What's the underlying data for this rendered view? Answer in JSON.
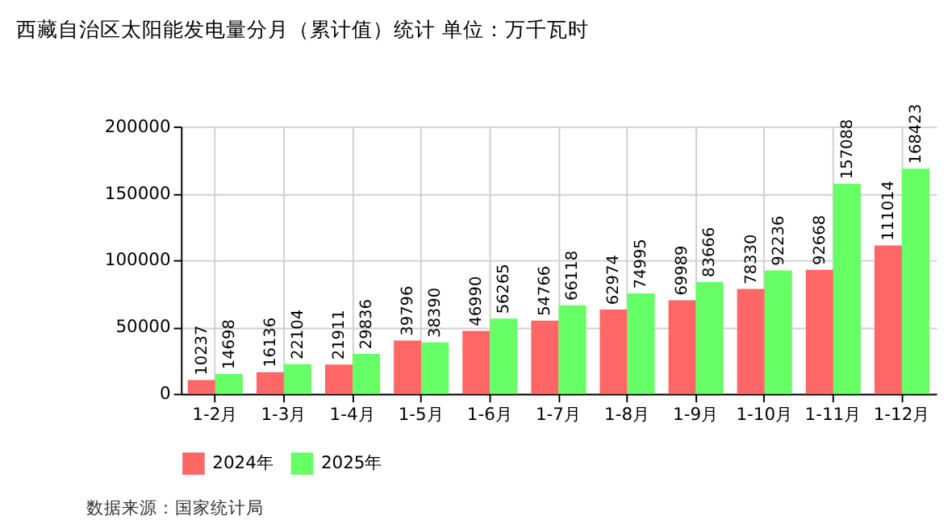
{
  "chart_data": {
    "type": "bar",
    "title": "西藏自治区太阳能发电量分月（累计值）统计 单位：万千瓦时",
    "categories": [
      "1-2月",
      "1-3月",
      "1-4月",
      "1-5月",
      "1-6月",
      "1-7月",
      "1-8月",
      "1-9月",
      "1-10月",
      "1-11月",
      "1-12月"
    ],
    "series": [
      {
        "name": "2024年",
        "color": "#ff6666",
        "values": [
          10237,
          16136,
          21911,
          39796,
          46990,
          54766,
          62974,
          69989,
          78330,
          92668,
          111014
        ]
      },
      {
        "name": "2025年",
        "color": "#66ff66",
        "values": [
          14698,
          22104,
          29836,
          38390,
          56265,
          66118,
          74995,
          83666,
          92236,
          157088,
          168423
        ]
      }
    ],
    "ylim": [
      0,
      200000
    ],
    "yticks": [
      0,
      50000,
      100000,
      150000,
      200000
    ],
    "grid": true,
    "legend": "bottom",
    "data_labels": true,
    "annotations": [
      "数据来源：国家统计局"
    ]
  }
}
